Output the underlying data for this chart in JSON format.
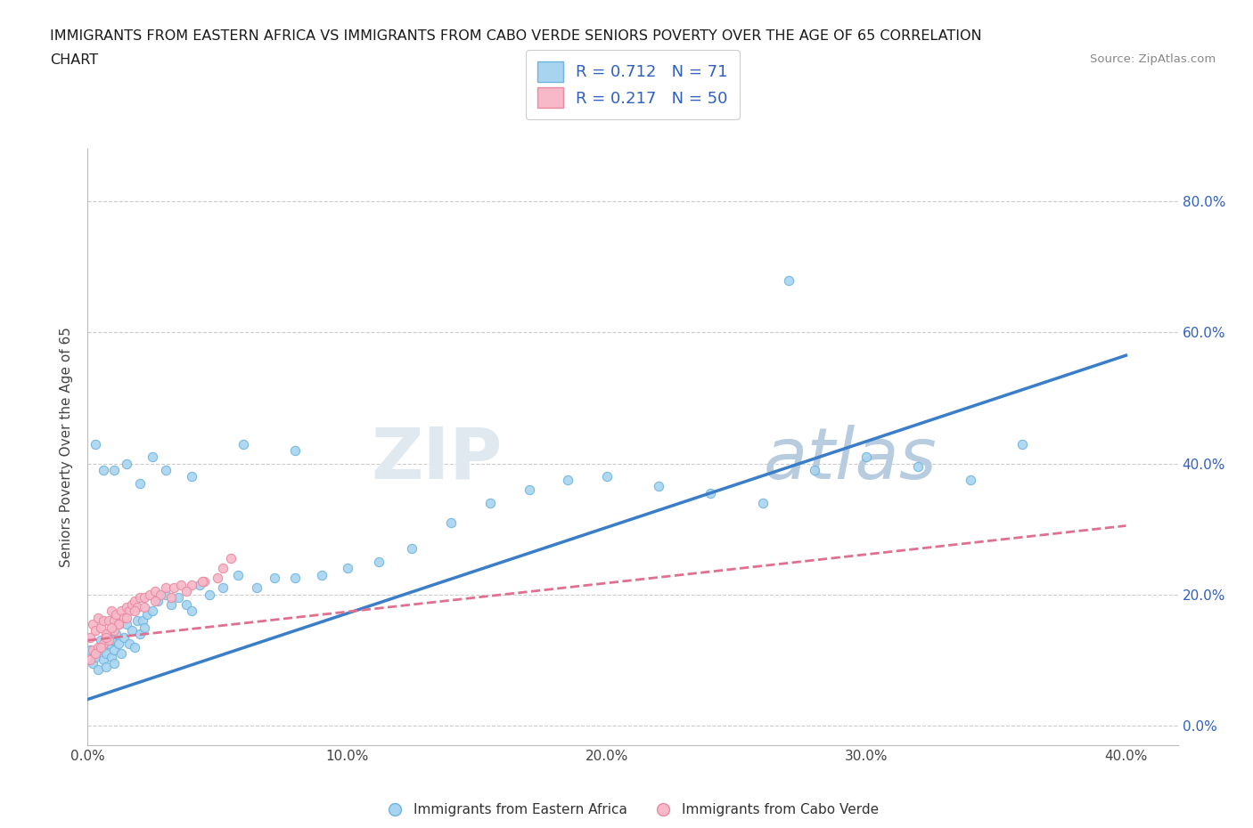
{
  "title_line1": "IMMIGRANTS FROM EASTERN AFRICA VS IMMIGRANTS FROM CABO VERDE SENIORS POVERTY OVER THE AGE OF 65 CORRELATION",
  "title_line2": "CHART",
  "source": "Source: ZipAtlas.com",
  "ylabel": "Seniors Poverty Over the Age of 65",
  "xlim": [
    0.0,
    0.42
  ],
  "ylim": [
    -0.03,
    0.88
  ],
  "xtick_labels": [
    "0.0%",
    "10.0%",
    "20.0%",
    "30.0%",
    "40.0%"
  ],
  "xtick_vals": [
    0.0,
    0.1,
    0.2,
    0.3,
    0.4
  ],
  "ytick_labels": [
    "0.0%",
    "20.0%",
    "40.0%",
    "60.0%",
    "80.0%"
  ],
  "ytick_vals": [
    0.0,
    0.2,
    0.4,
    0.6,
    0.8
  ],
  "legend_r1": "R = 0.712",
  "legend_n1": "N = 71",
  "legend_r2": "R = 0.217",
  "legend_n2": "N = 50",
  "color_blue": "#a8d4f0",
  "color_blue_edge": "#6fb3de",
  "color_blue_line": "#3a7dc9",
  "color_pink": "#f7b8c8",
  "color_pink_edge": "#e88aa0",
  "color_pink_line": "#e07090",
  "color_text_blue": "#3060c0",
  "watermark_color": "#d0dff0",
  "grid_color": "#cccccc",
  "eastern_africa_x": [
    0.001,
    0.002,
    0.003,
    0.004,
    0.005,
    0.005,
    0.006,
    0.006,
    0.007,
    0.007,
    0.008,
    0.008,
    0.009,
    0.009,
    0.01,
    0.01,
    0.011,
    0.012,
    0.013,
    0.014,
    0.015,
    0.016,
    0.017,
    0.018,
    0.019,
    0.02,
    0.021,
    0.022,
    0.023,
    0.025,
    0.027,
    0.03,
    0.032,
    0.035,
    0.038,
    0.04,
    0.043,
    0.047,
    0.052,
    0.058,
    0.065,
    0.072,
    0.08,
    0.09,
    0.1,
    0.112,
    0.125,
    0.14,
    0.155,
    0.17,
    0.185,
    0.2,
    0.22,
    0.24,
    0.26,
    0.28,
    0.3,
    0.32,
    0.34,
    0.36,
    0.003,
    0.006,
    0.01,
    0.015,
    0.02,
    0.025,
    0.03,
    0.04,
    0.06,
    0.08,
    0.27
  ],
  "eastern_africa_y": [
    0.115,
    0.095,
    0.105,
    0.085,
    0.115,
    0.13,
    0.1,
    0.12,
    0.09,
    0.11,
    0.125,
    0.14,
    0.105,
    0.13,
    0.115,
    0.095,
    0.14,
    0.125,
    0.11,
    0.135,
    0.155,
    0.125,
    0.145,
    0.12,
    0.16,
    0.14,
    0.16,
    0.15,
    0.17,
    0.175,
    0.19,
    0.2,
    0.185,
    0.195,
    0.185,
    0.175,
    0.215,
    0.2,
    0.21,
    0.23,
    0.21,
    0.225,
    0.225,
    0.23,
    0.24,
    0.25,
    0.27,
    0.31,
    0.34,
    0.36,
    0.375,
    0.38,
    0.365,
    0.355,
    0.34,
    0.39,
    0.41,
    0.395,
    0.375,
    0.43,
    0.43,
    0.39,
    0.39,
    0.4,
    0.37,
    0.41,
    0.39,
    0.38,
    0.43,
    0.42,
    0.68
  ],
  "cabo_verde_x": [
    0.001,
    0.002,
    0.003,
    0.004,
    0.005,
    0.006,
    0.007,
    0.008,
    0.009,
    0.01,
    0.011,
    0.012,
    0.013,
    0.014,
    0.015,
    0.016,
    0.017,
    0.018,
    0.019,
    0.02,
    0.022,
    0.024,
    0.026,
    0.028,
    0.03,
    0.033,
    0.036,
    0.04,
    0.045,
    0.05,
    0.002,
    0.004,
    0.006,
    0.008,
    0.01,
    0.012,
    0.015,
    0.018,
    0.022,
    0.026,
    0.032,
    0.038,
    0.044,
    0.052,
    0.001,
    0.003,
    0.005,
    0.007,
    0.009,
    0.055
  ],
  "cabo_verde_y": [
    0.135,
    0.155,
    0.145,
    0.165,
    0.15,
    0.16,
    0.14,
    0.16,
    0.175,
    0.16,
    0.17,
    0.155,
    0.175,
    0.165,
    0.18,
    0.175,
    0.185,
    0.19,
    0.18,
    0.195,
    0.195,
    0.2,
    0.205,
    0.2,
    0.21,
    0.21,
    0.215,
    0.215,
    0.22,
    0.225,
    0.115,
    0.12,
    0.125,
    0.13,
    0.145,
    0.155,
    0.165,
    0.175,
    0.18,
    0.19,
    0.195,
    0.205,
    0.22,
    0.24,
    0.1,
    0.11,
    0.12,
    0.135,
    0.15,
    0.255
  ],
  "ea_trendline_x": [
    0.0,
    0.4
  ],
  "ea_trendline_y": [
    0.04,
    0.565
  ],
  "cv_trendline_x": [
    0.0,
    0.4
  ],
  "cv_trendline_y": [
    0.13,
    0.305
  ]
}
